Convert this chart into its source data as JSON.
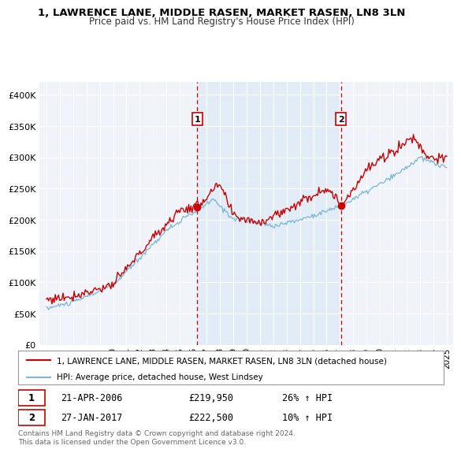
{
  "title": "1, LAWRENCE LANE, MIDDLE RASEN, MARKET RASEN, LN8 3LN",
  "subtitle": "Price paid vs. HM Land Registry's House Price Index (HPI)",
  "ylabel_ticks": [
    "£0",
    "£50K",
    "£100K",
    "£150K",
    "£200K",
    "£250K",
    "£300K",
    "£350K",
    "£400K"
  ],
  "ytick_values": [
    0,
    50000,
    100000,
    150000,
    200000,
    250000,
    300000,
    350000,
    400000
  ],
  "ylim": [
    0,
    420000
  ],
  "sale1_x": 2006.3,
  "sale2_x": 2017.07,
  "sale1_price": 219950,
  "sale2_price": 222500,
  "sale1_date": "21-APR-2006",
  "sale2_date": "27-JAN-2017",
  "sale1_hpi": "26% ↑ HPI",
  "sale2_hpi": "10% ↑ HPI",
  "legend_line1": "1, LAWRENCE LANE, MIDDLE RASEN, MARKET RASEN, LN8 3LN (detached house)",
  "legend_line2": "HPI: Average price, detached house, West Lindsey",
  "footer": "Contains HM Land Registry data © Crown copyright and database right 2024.\nThis data is licensed under the Open Government Licence v3.0.",
  "hpi_color": "#6baed6",
  "price_color": "#cc0000",
  "bg_color": "#f0f4fa",
  "plot_bg": "#f0f4fa",
  "grid_color": "#ffffff",
  "xmin": 1995,
  "xmax": 2025
}
